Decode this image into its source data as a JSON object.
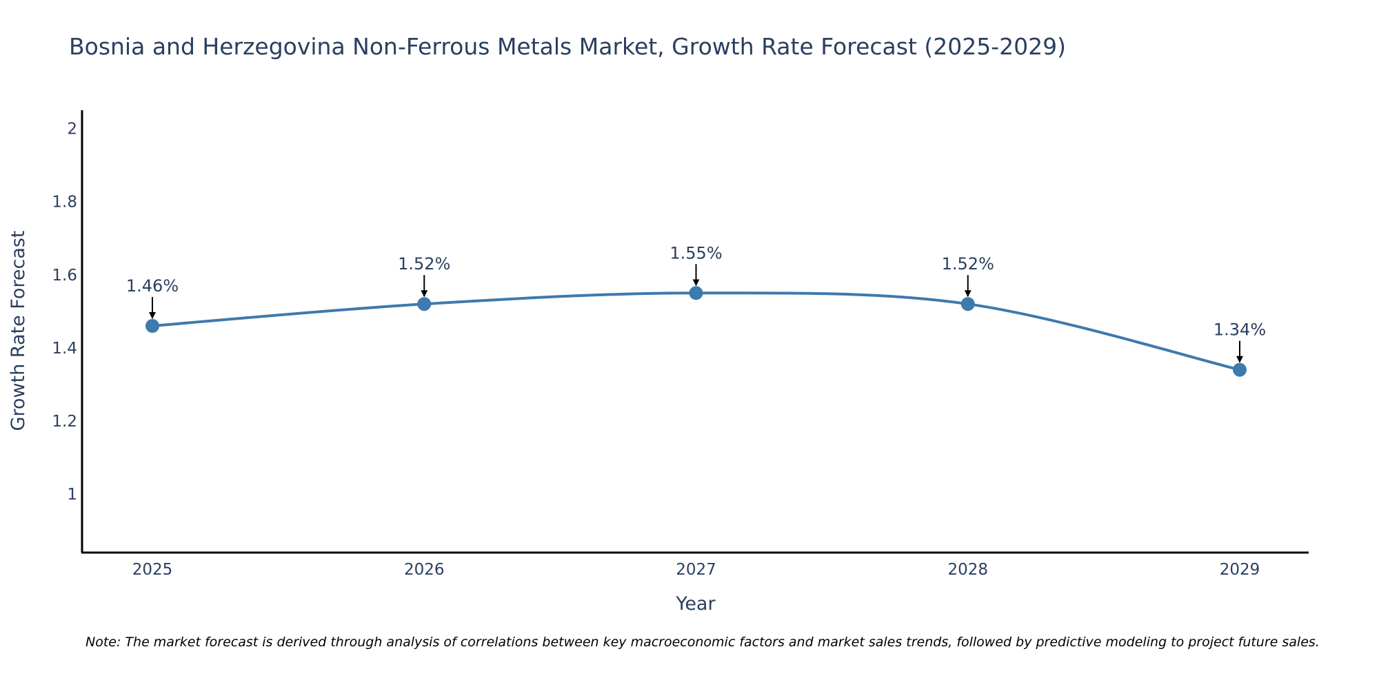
{
  "chart_data": {
    "type": "line",
    "title": "Bosnia and Herzegovina Non-Ferrous Metals Market, Growth Rate Forecast (2025-2029)",
    "xlabel": "Year",
    "ylabel": "Growth Rate Forecast",
    "categories": [
      "2025",
      "2026",
      "2027",
      "2028",
      "2029"
    ],
    "series": [
      {
        "name": "Growth Rate Forecast",
        "values": [
          1.46,
          1.52,
          1.55,
          1.52,
          1.34
        ],
        "color": "#3d7aad"
      }
    ],
    "data_labels": [
      "1.46%",
      "1.52%",
      "1.55%",
      "1.52%",
      "1.34%"
    ],
    "ylim": [
      0.84,
      2.05
    ],
    "yticks": [
      1,
      1.2,
      1.4,
      1.6,
      1.8,
      2
    ],
    "ytick_labels": [
      "1",
      "1.2",
      "1.4",
      "1.6",
      "1.8",
      "2"
    ],
    "grid": false,
    "line_shape": "spline",
    "annotation_arrow_color": "#000000",
    "axis_color": "#000000"
  },
  "note": "Note: The market forecast is derived through analysis of correlations between key macroeconomic factors and market sales trends, followed by predictive modeling to project future sales."
}
